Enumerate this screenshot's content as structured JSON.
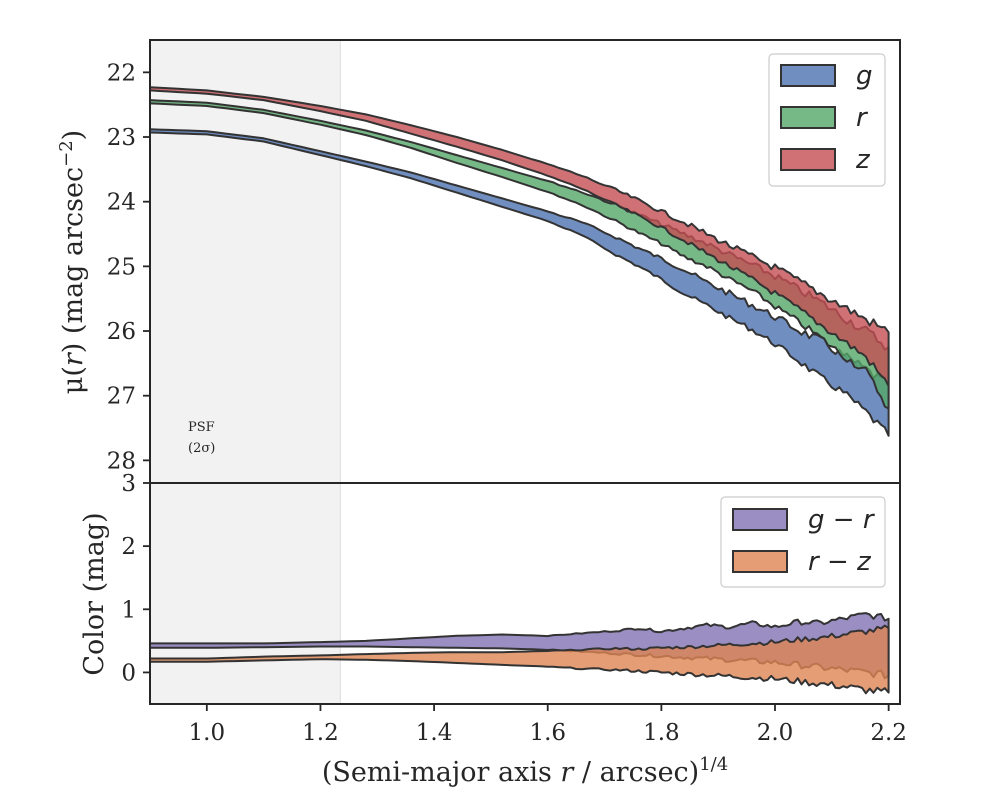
{
  "chart_data": [
    {
      "id": "profile",
      "type": "area",
      "ylabel_main": "μ(",
      "ylabel_var": "r",
      "ylabel_rest": ") (mag arcsec",
      "ylabel_exp": "−2",
      "ylabel_end": ")",
      "xlim": [
        0.9,
        2.22
      ],
      "ylim": [
        28.35,
        21.5
      ],
      "yticks": [
        22,
        23,
        24,
        25,
        26,
        27,
        28
      ],
      "ytick_labels": [
        "22",
        "23",
        "24",
        "25",
        "26",
        "27",
        "28"
      ],
      "legend_position": "top-right",
      "shaded_region": {
        "x0": 0.9,
        "x1": 1.235,
        "label_line1": "PSF",
        "label_line2": "(2σ)"
      },
      "series": [
        {
          "name": "g",
          "color": "#4c72b0",
          "points": [
            [
              0.9,
              22.88,
              22.93
            ],
            [
              1.0,
              22.91,
              22.96
            ],
            [
              1.1,
              23.02,
              23.07
            ],
            [
              1.2,
              23.22,
              23.28
            ],
            [
              1.28,
              23.38,
              23.45
            ],
            [
              1.36,
              23.55,
              23.64
            ],
            [
              1.44,
              23.75,
              23.86
            ],
            [
              1.52,
              23.95,
              24.08
            ],
            [
              1.6,
              24.15,
              24.3
            ],
            [
              1.66,
              24.32,
              24.52
            ],
            [
              1.72,
              24.55,
              24.82
            ],
            [
              1.76,
              24.72,
              25.0
            ],
            [
              1.8,
              24.88,
              25.2
            ],
            [
              1.84,
              25.05,
              25.42
            ],
            [
              1.88,
              25.25,
              25.6
            ],
            [
              1.92,
              25.42,
              25.8
            ],
            [
              1.96,
              25.6,
              25.98
            ],
            [
              2.0,
              25.78,
              26.2
            ],
            [
              2.04,
              25.98,
              26.45
            ],
            [
              2.08,
              26.15,
              26.72
            ],
            [
              2.12,
              26.38,
              26.95
            ],
            [
              2.16,
              26.6,
              27.25
            ],
            [
              2.2,
              26.85,
              27.62
            ]
          ]
        },
        {
          "name": "r",
          "color": "#55a868",
          "points": [
            [
              0.9,
              22.43,
              22.48
            ],
            [
              1.0,
              22.47,
              22.52
            ],
            [
              1.1,
              22.58,
              22.63
            ],
            [
              1.2,
              22.75,
              22.81
            ],
            [
              1.28,
              22.9,
              22.97
            ],
            [
              1.36,
              23.08,
              23.17
            ],
            [
              1.44,
              23.28,
              23.4
            ],
            [
              1.52,
              23.48,
              23.62
            ],
            [
              1.6,
              23.68,
              23.85
            ],
            [
              1.66,
              23.85,
              24.05
            ],
            [
              1.72,
              24.05,
              24.3
            ],
            [
              1.76,
              24.2,
              24.48
            ],
            [
              1.8,
              24.35,
              24.65
            ],
            [
              1.84,
              24.5,
              24.85
            ],
            [
              1.88,
              24.65,
              25.0
            ],
            [
              1.92,
              24.82,
              25.2
            ],
            [
              1.96,
              24.98,
              25.38
            ],
            [
              2.0,
              25.15,
              25.62
            ],
            [
              2.04,
              25.35,
              25.85
            ],
            [
              2.08,
              25.55,
              26.1
            ],
            [
              2.12,
              25.78,
              26.38
            ],
            [
              2.16,
              26.0,
              26.62
            ],
            [
              2.2,
              26.25,
              27.2
            ]
          ]
        },
        {
          "name": "z",
          "color": "#c44e52",
          "points": [
            [
              0.9,
              22.23,
              22.28
            ],
            [
              1.0,
              22.28,
              22.33
            ],
            [
              1.1,
              22.38,
              22.43
            ],
            [
              1.2,
              22.52,
              22.6
            ],
            [
              1.28,
              22.65,
              22.75
            ],
            [
              1.36,
              22.82,
              22.95
            ],
            [
              1.44,
              23.0,
              23.15
            ],
            [
              1.52,
              23.2,
              23.36
            ],
            [
              1.6,
              23.42,
              23.6
            ],
            [
              1.66,
              23.6,
              23.8
            ],
            [
              1.72,
              23.82,
              24.05
            ],
            [
              1.76,
              23.98,
              24.22
            ],
            [
              1.8,
              24.15,
              24.4
            ],
            [
              1.84,
              24.32,
              24.6
            ],
            [
              1.88,
              24.5,
              24.8
            ],
            [
              1.92,
              24.68,
              25.0
            ],
            [
              1.96,
              24.85,
              25.2
            ],
            [
              2.0,
              25.02,
              25.42
            ],
            [
              2.04,
              25.22,
              25.65
            ],
            [
              2.08,
              25.42,
              25.9
            ],
            [
              2.12,
              25.62,
              26.15
            ],
            [
              2.16,
              25.82,
              26.4
            ],
            [
              2.2,
              26.02,
              26.85
            ]
          ]
        }
      ]
    },
    {
      "id": "color",
      "type": "area",
      "ylabel": "Color (mag)",
      "xlabel_main": "(Semi-major axis ",
      "xlabel_var": "r",
      "xlabel_rest": " / arcsec)",
      "xlabel_exp": "1/4",
      "xlim": [
        0.9,
        2.22
      ],
      "ylim": [
        -0.5,
        3
      ],
      "xticks": [
        1.0,
        1.2,
        1.4,
        1.6,
        1.8,
        2.0,
        2.2
      ],
      "xtick_labels": [
        "1.0",
        "1.2",
        "1.4",
        "1.6",
        "1.8",
        "2.0",
        "2.2"
      ],
      "yticks": [
        0,
        1,
        2,
        3
      ],
      "ytick_labels": [
        "0",
        "1",
        "2",
        "3"
      ],
      "legend_position": "top-right",
      "shaded_region": {
        "x0": 0.9,
        "x1": 1.235
      },
      "series": [
        {
          "name": "g − r",
          "color": "#8172b3",
          "points": [
            [
              0.9,
              0.39,
              0.46
            ],
            [
              1.0,
              0.39,
              0.46
            ],
            [
              1.1,
              0.4,
              0.46
            ],
            [
              1.2,
              0.41,
              0.48
            ],
            [
              1.28,
              0.41,
              0.5
            ],
            [
              1.36,
              0.4,
              0.54
            ],
            [
              1.44,
              0.39,
              0.58
            ],
            [
              1.52,
              0.38,
              0.6
            ],
            [
              1.6,
              0.36,
              0.58
            ],
            [
              1.66,
              0.33,
              0.62
            ],
            [
              1.72,
              0.3,
              0.66
            ],
            [
              1.76,
              0.28,
              0.7
            ],
            [
              1.8,
              0.26,
              0.65
            ],
            [
              1.84,
              0.24,
              0.7
            ],
            [
              1.88,
              0.22,
              0.75
            ],
            [
              1.92,
              0.2,
              0.72
            ],
            [
              1.96,
              0.18,
              0.78
            ],
            [
              2.0,
              0.16,
              0.72
            ],
            [
              2.04,
              0.12,
              0.8
            ],
            [
              2.08,
              0.08,
              0.78
            ],
            [
              2.12,
              0.04,
              0.85
            ],
            [
              2.16,
              0.0,
              0.92
            ],
            [
              2.2,
              -0.05,
              0.85
            ]
          ]
        },
        {
          "name": "r − z",
          "color": "#dd8452",
          "points": [
            [
              0.9,
              0.17,
              0.22
            ],
            [
              1.0,
              0.17,
              0.22
            ],
            [
              1.1,
              0.19,
              0.25
            ],
            [
              1.2,
              0.21,
              0.27
            ],
            [
              1.28,
              0.2,
              0.29
            ],
            [
              1.36,
              0.18,
              0.31
            ],
            [
              1.44,
              0.15,
              0.32
            ],
            [
              1.52,
              0.12,
              0.32
            ],
            [
              1.6,
              0.09,
              0.34
            ],
            [
              1.66,
              0.06,
              0.36
            ],
            [
              1.72,
              0.04,
              0.38
            ],
            [
              1.76,
              0.02,
              0.37
            ],
            [
              1.8,
              0.0,
              0.39
            ],
            [
              1.84,
              -0.02,
              0.4
            ],
            [
              1.88,
              -0.04,
              0.42
            ],
            [
              1.92,
              -0.06,
              0.44
            ],
            [
              1.96,
              -0.08,
              0.46
            ],
            [
              2.0,
              -0.1,
              0.48
            ],
            [
              2.04,
              -0.14,
              0.52
            ],
            [
              2.08,
              -0.18,
              0.55
            ],
            [
              2.12,
              -0.22,
              0.6
            ],
            [
              2.16,
              -0.28,
              0.65
            ],
            [
              2.2,
              -0.32,
              0.7
            ]
          ]
        }
      ]
    }
  ]
}
